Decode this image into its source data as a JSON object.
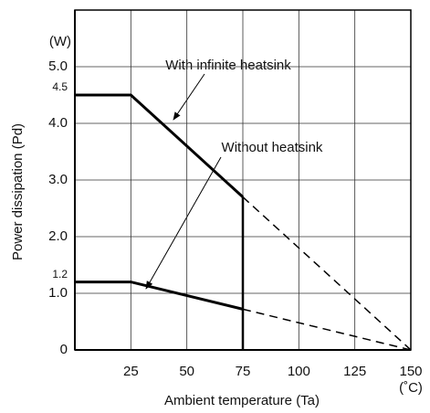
{
  "chart_data": {
    "type": "line",
    "xlabel": "Ambient temperature (Ta)",
    "ylabel": "Power dissipation (Pd)",
    "x_unit": "(˚C)",
    "y_unit": "(W)",
    "xlim": [
      0,
      150
    ],
    "ylim": [
      0,
      6
    ],
    "xticks": [
      25,
      50,
      75,
      100,
      125,
      150
    ],
    "yticks": [
      0,
      {
        "value": 1,
        "label": "1.0"
      },
      {
        "value": 2,
        "label": "2.0"
      },
      {
        "value": 3,
        "label": "3.0"
      },
      {
        "value": 4,
        "label": "4.0"
      },
      {
        "value": 5,
        "label": "5.0"
      }
    ],
    "marked_values": [
      4.5,
      1.2
    ],
    "grid": true,
    "series": [
      {
        "name": "With infinite heatsink",
        "color": "#000000",
        "x": [
          0,
          25,
          75,
          150
        ],
        "values": [
          4.5,
          4.5,
          2.7,
          0
        ],
        "dashed_from": 2
      },
      {
        "name": "Without heatsink",
        "color": "#000000",
        "x": [
          0,
          25,
          75,
          150
        ],
        "values": [
          1.2,
          1.2,
          0.72,
          0
        ],
        "dashed_from": 2
      }
    ]
  }
}
